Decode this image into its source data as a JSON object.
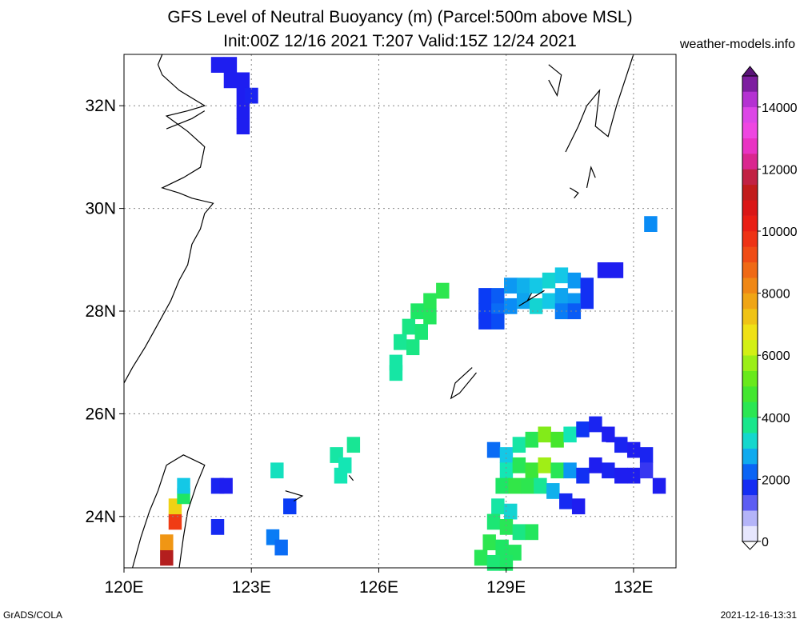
{
  "chart_data": {
    "type": "heatmap",
    "title": "GFS Level of Neutral Buoyancy (m) (Parcel:500m above MSL)",
    "subtitle": "Init:00Z 12/16 2021 T:207 Valid:15Z 12/24 2021",
    "source": "weather-models.info",
    "xlim": [
      120,
      133
    ],
    "ylim": [
      23,
      33
    ],
    "x_ticks": [
      {
        "value": 120,
        "label": "120E"
      },
      {
        "value": 123,
        "label": "123E"
      },
      {
        "value": 126,
        "label": "126E"
      },
      {
        "value": 129,
        "label": "129E"
      },
      {
        "value": 132,
        "label": "132E"
      }
    ],
    "y_ticks": [
      {
        "value": 24,
        "label": "24N"
      },
      {
        "value": 26,
        "label": "26N"
      },
      {
        "value": 28,
        "label": "28N"
      },
      {
        "value": 30,
        "label": "30N"
      },
      {
        "value": 32,
        "label": "32N"
      }
    ],
    "grid": true,
    "colorbar": {
      "position": "right",
      "range": [
        0,
        15000
      ],
      "tick_values": [
        0,
        2000,
        4000,
        6000,
        8000,
        10000,
        12000,
        14000
      ],
      "tick_labels": [
        "0",
        "2000",
        "4000",
        "6000",
        "8000",
        "10000",
        "12000",
        "14000"
      ],
      "stops": [
        [
          0,
          "#ffffff"
        ],
        [
          1000,
          "#9b9bf5"
        ],
        [
          1500,
          "#1e1ef0"
        ],
        [
          2000,
          "#0a3cf5"
        ],
        [
          2500,
          "#0a8cf5"
        ],
        [
          3000,
          "#14c8e6"
        ],
        [
          3500,
          "#14e6b4"
        ],
        [
          4000,
          "#1ee664"
        ],
        [
          5000,
          "#50e61e"
        ],
        [
          6000,
          "#b4f014"
        ],
        [
          6500,
          "#f0f014"
        ],
        [
          7500,
          "#f0b414"
        ],
        [
          8500,
          "#f07814"
        ],
        [
          9500,
          "#f03c14"
        ],
        [
          10500,
          "#e61414"
        ],
        [
          11500,
          "#b41e1e"
        ],
        [
          12500,
          "#e628b4"
        ],
        [
          13500,
          "#f050f0"
        ],
        [
          14500,
          "#a028c8"
        ],
        [
          15000,
          "#5a1478"
        ]
      ]
    },
    "cells": [
      [
        122.2,
        32.8,
        1500
      ],
      [
        122.5,
        32.8,
        1500
      ],
      [
        122.5,
        32.5,
        1500
      ],
      [
        122.8,
        32.5,
        1500
      ],
      [
        122.8,
        32.2,
        1500
      ],
      [
        123.0,
        32.2,
        1600
      ],
      [
        122.8,
        31.9,
        1500
      ],
      [
        122.8,
        31.6,
        1500
      ],
      [
        127.2,
        28.2,
        4200
      ],
      [
        127.5,
        28.4,
        4300
      ],
      [
        126.9,
        28.0,
        4000
      ],
      [
        127.2,
        27.9,
        4100
      ],
      [
        126.7,
        27.7,
        3800
      ],
      [
        127.0,
        27.6,
        3900
      ],
      [
        126.5,
        27.4,
        3700
      ],
      [
        126.8,
        27.3,
        3800
      ],
      [
        126.4,
        27.0,
        3600
      ],
      [
        126.4,
        26.8,
        3600
      ],
      [
        128.5,
        28.3,
        2000
      ],
      [
        128.8,
        28.3,
        2200
      ],
      [
        129.1,
        28.5,
        2600
      ],
      [
        129.4,
        28.5,
        2800
      ],
      [
        129.7,
        28.5,
        3000
      ],
      [
        130.0,
        28.6,
        3200
      ],
      [
        130.3,
        28.7,
        3000
      ],
      [
        130.6,
        28.6,
        2600
      ],
      [
        130.9,
        28.5,
        1800
      ],
      [
        128.5,
        28.0,
        2000
      ],
      [
        128.8,
        28.0,
        2300
      ],
      [
        129.1,
        28.1,
        2500
      ],
      [
        129.4,
        28.2,
        2700
      ],
      [
        129.7,
        28.1,
        3200
      ],
      [
        130.0,
        28.2,
        3000
      ],
      [
        130.3,
        28.3,
        2700
      ],
      [
        130.6,
        28.2,
        2600
      ],
      [
        130.9,
        28.2,
        1800
      ],
      [
        128.5,
        27.8,
        1900
      ],
      [
        128.8,
        27.8,
        2100
      ],
      [
        130.3,
        28.0,
        2400
      ],
      [
        130.6,
        28.0,
        2200
      ],
      [
        131.3,
        28.8,
        1500
      ],
      [
        131.6,
        28.8,
        1500
      ],
      [
        132.4,
        29.7,
        2500
      ],
      [
        121.0,
        23.2,
        11500
      ],
      [
        121.0,
        23.5,
        8000
      ],
      [
        121.2,
        23.9,
        9500
      ],
      [
        121.2,
        24.2,
        7000
      ],
      [
        121.4,
        24.4,
        4000
      ],
      [
        121.4,
        24.6,
        3000
      ],
      [
        122.2,
        24.6,
        1600
      ],
      [
        122.4,
        24.6,
        1500
      ],
      [
        122.2,
        23.8,
        1700
      ],
      [
        123.6,
        24.9,
        3400
      ],
      [
        123.9,
        24.2,
        2000
      ],
      [
        123.5,
        23.6,
        2400
      ],
      [
        123.7,
        23.4,
        2300
      ],
      [
        125.0,
        25.2,
        3600
      ],
      [
        125.2,
        25.0,
        3500
      ],
      [
        125.4,
        25.4,
        3700
      ],
      [
        125.1,
        24.8,
        3500
      ],
      [
        128.7,
        25.3,
        2300
      ],
      [
        129.0,
        25.2,
        3000
      ],
      [
        129.3,
        25.4,
        3600
      ],
      [
        129.6,
        25.5,
        4200
      ],
      [
        129.9,
        25.6,
        5500
      ],
      [
        130.2,
        25.5,
        4800
      ],
      [
        130.5,
        25.6,
        3500
      ],
      [
        130.8,
        25.7,
        1900
      ],
      [
        131.1,
        25.8,
        1600
      ],
      [
        131.4,
        25.6,
        1500
      ],
      [
        131.7,
        25.4,
        1600
      ],
      [
        132.0,
        25.3,
        1500
      ],
      [
        132.3,
        25.2,
        1600
      ],
      [
        129.0,
        24.9,
        3500
      ],
      [
        129.3,
        25.0,
        4200
      ],
      [
        129.6,
        24.9,
        4600
      ],
      [
        129.9,
        25.0,
        5800
      ],
      [
        130.2,
        24.9,
        4200
      ],
      [
        130.5,
        24.9,
        2600
      ],
      [
        130.8,
        24.8,
        1800
      ],
      [
        131.1,
        25.0,
        1500
      ],
      [
        131.4,
        24.9,
        1600
      ],
      [
        131.7,
        24.8,
        1500
      ],
      [
        132.0,
        24.8,
        1500
      ],
      [
        132.3,
        24.9,
        1400
      ],
      [
        132.6,
        24.6,
        1500
      ],
      [
        128.9,
        24.6,
        4000
      ],
      [
        129.2,
        24.6,
        4400
      ],
      [
        129.5,
        24.6,
        4300
      ],
      [
        129.8,
        24.6,
        3700
      ],
      [
        130.1,
        24.5,
        2800
      ],
      [
        130.4,
        24.3,
        1700
      ],
      [
        130.7,
        24.2,
        1500
      ],
      [
        128.8,
        24.2,
        3600
      ],
      [
        129.1,
        24.1,
        3200
      ],
      [
        128.7,
        23.9,
        3900
      ],
      [
        129.0,
        23.8,
        4200
      ],
      [
        129.3,
        23.7,
        3800
      ],
      [
        129.6,
        23.7,
        4100
      ],
      [
        128.6,
        23.5,
        4300
      ],
      [
        128.9,
        23.4,
        4000
      ],
      [
        129.2,
        23.3,
        4100
      ],
      [
        128.4,
        23.2,
        4200
      ],
      [
        128.7,
        23.1,
        3900
      ],
      [
        129.0,
        23.1,
        4000
      ]
    ],
    "missing": [
      [
        131.2,
        25.3
      ],
      [
        130.3,
        25.9
      ],
      [
        131.5,
        25.9
      ]
    ]
  },
  "footer": {
    "left": "GrADS/COLA",
    "right": "2021-12-16-13:31"
  }
}
